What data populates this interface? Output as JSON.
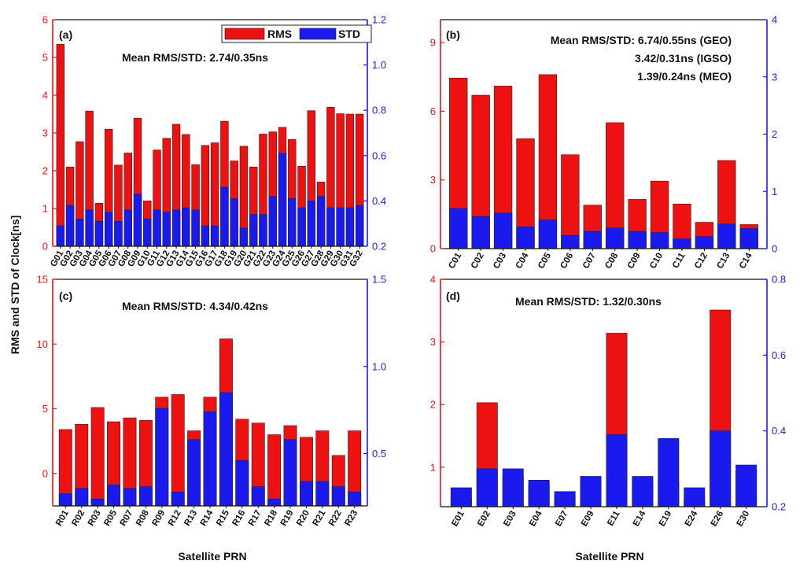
{
  "figure": {
    "ylabel": "RMS and STD of Clock[ns]",
    "xlabel": "Satellite PRN"
  },
  "colors": {
    "rms": "#ee1111",
    "std": "#1a1aee",
    "left_axis": "#ee1111",
    "right_axis": "#1a1aee"
  },
  "chart_data": [
    {
      "type": "bar",
      "panel": "(a)",
      "legend": [
        "RMS",
        "STD"
      ],
      "annotations": [
        "Mean RMS/STD: 2.74/0.35ns"
      ],
      "categories": [
        "G01",
        "G02",
        "G03",
        "G04",
        "G05",
        "G06",
        "G07",
        "G08",
        "G09",
        "G10",
        "G11",
        "G12",
        "G13",
        "G14",
        "G15",
        "G16",
        "G17",
        "G18",
        "G19",
        "G20",
        "G21",
        "G22",
        "G23",
        "G24",
        "G25",
        "G26",
        "G27",
        "G28",
        "G29",
        "G30",
        "G31",
        "G32"
      ],
      "left_ylim": [
        0,
        6
      ],
      "left_ticks": [
        "0",
        "1",
        "2",
        "3",
        "4",
        "5",
        "6"
      ],
      "right_ylim": [
        0.2,
        1.2
      ],
      "right_ticks": [
        "0.2",
        "0.4",
        "0.6",
        "0.8",
        "1.0",
        "1.2"
      ],
      "series": [
        {
          "name": "RMS",
          "axis": "left",
          "values": [
            5.35,
            2.1,
            2.77,
            3.58,
            1.14,
            3.1,
            2.15,
            2.47,
            3.39,
            1.2,
            2.55,
            2.86,
            3.23,
            2.96,
            2.16,
            2.67,
            2.74,
            3.31,
            2.26,
            2.65,
            2.1,
            2.97,
            3.03,
            3.15,
            2.83,
            2.12,
            3.59,
            1.7,
            3.68,
            3.51,
            3.5,
            3.5
          ]
        },
        {
          "name": "STD",
          "axis": "right",
          "values": [
            0.29,
            0.38,
            0.32,
            0.36,
            0.31,
            0.35,
            0.31,
            0.36,
            0.43,
            0.32,
            0.36,
            0.35,
            0.36,
            0.37,
            0.36,
            0.29,
            0.29,
            0.46,
            0.41,
            0.28,
            0.34,
            0.34,
            0.42,
            0.61,
            0.41,
            0.37,
            0.4,
            0.42,
            0.37,
            0.37,
            0.37,
            0.38
          ]
        }
      ]
    },
    {
      "type": "bar",
      "panel": "(b)",
      "annotations": [
        "Mean RMS/STD: 6.74/0.55ns (GEO)",
        "3.42/0.31ns (IGSO)",
        "1.39/0.24ns  (MEO)"
      ],
      "categories": [
        "C01",
        "C02",
        "C03",
        "C04",
        "C05",
        "C06",
        "C07",
        "C08",
        "C09",
        "C10",
        "C11",
        "C12",
        "C13",
        "C14"
      ],
      "left_ylim": [
        0,
        10
      ],
      "left_ticks": [
        "0",
        "3",
        "6",
        "9"
      ],
      "right_ylim": [
        0,
        4
      ],
      "right_ticks": [
        "0",
        "1",
        "2",
        "3",
        "4"
      ],
      "series": [
        {
          "name": "RMS",
          "axis": "left",
          "values": [
            7.45,
            6.7,
            7.1,
            4.8,
            7.6,
            4.1,
            1.9,
            5.5,
            2.15,
            2.95,
            1.95,
            1.15,
            3.85,
            1.05
          ]
        },
        {
          "name": "STD",
          "axis": "right",
          "values": [
            0.7,
            0.56,
            0.62,
            0.38,
            0.5,
            0.23,
            0.3,
            0.36,
            0.3,
            0.28,
            0.17,
            0.21,
            0.43,
            0.35
          ]
        }
      ]
    },
    {
      "type": "bar",
      "panel": "(c)",
      "annotations": [
        "Mean RMS/STD: 4.34/0.42ns"
      ],
      "categories": [
        "R01",
        "R02",
        "R03",
        "R05",
        "R07",
        "R08",
        "R09",
        "R12",
        "R13",
        "R14",
        "R15",
        "R16",
        "R17",
        "R18",
        "R19",
        "R20",
        "R21",
        "R22",
        "R23"
      ],
      "left_ylim": [
        -2.5,
        15
      ],
      "left_ticks": [
        "0",
        "5",
        "10",
        "15"
      ],
      "right_ylim": [
        0.2,
        1.5
      ],
      "right_ticks": [
        "0.5",
        "1.0",
        "1.5"
      ],
      "series": [
        {
          "name": "RMS",
          "axis": "left",
          "values": [
            3.4,
            3.8,
            5.1,
            4.0,
            4.3,
            4.1,
            5.9,
            6.1,
            3.3,
            5.9,
            10.4,
            4.2,
            3.9,
            3.0,
            3.7,
            2.8,
            3.3,
            1.4,
            3.3
          ]
        },
        {
          "name": "STD",
          "axis": "right",
          "values": [
            0.27,
            0.3,
            0.24,
            0.32,
            0.3,
            0.31,
            0.76,
            0.28,
            0.58,
            0.74,
            0.85,
            0.46,
            0.31,
            0.24,
            0.58,
            0.34,
            0.34,
            0.31,
            0.28
          ]
        }
      ]
    },
    {
      "type": "bar",
      "panel": "(d)",
      "annotations": [
        "Mean RMS/STD: 1.32/0.30ns"
      ],
      "categories": [
        "E01",
        "E02",
        "E03",
        "E04",
        "E07",
        "E09",
        "E11",
        "E14",
        "E19",
        "E24",
        "E26",
        "E30"
      ],
      "left_ylim": [
        0.37,
        4
      ],
      "left_ticks": [
        "1",
        "2",
        "3",
        "4"
      ],
      "right_ylim": [
        0.2,
        0.8
      ],
      "right_ticks": [
        "0.2",
        "0.4",
        "0.6",
        "0.8"
      ],
      "series": [
        {
          "name": "RMS",
          "axis": "left",
          "values": [
            0.5,
            2.03,
            0.85,
            0.73,
            0.5,
            0.72,
            3.14,
            0.77,
            0.77,
            0.5,
            3.51,
            0.95
          ]
        },
        {
          "name": "STD",
          "axis": "right",
          "values": [
            0.25,
            0.3,
            0.3,
            0.27,
            0.24,
            0.28,
            0.39,
            0.28,
            0.38,
            0.25,
            0.4,
            0.31
          ]
        }
      ]
    }
  ]
}
